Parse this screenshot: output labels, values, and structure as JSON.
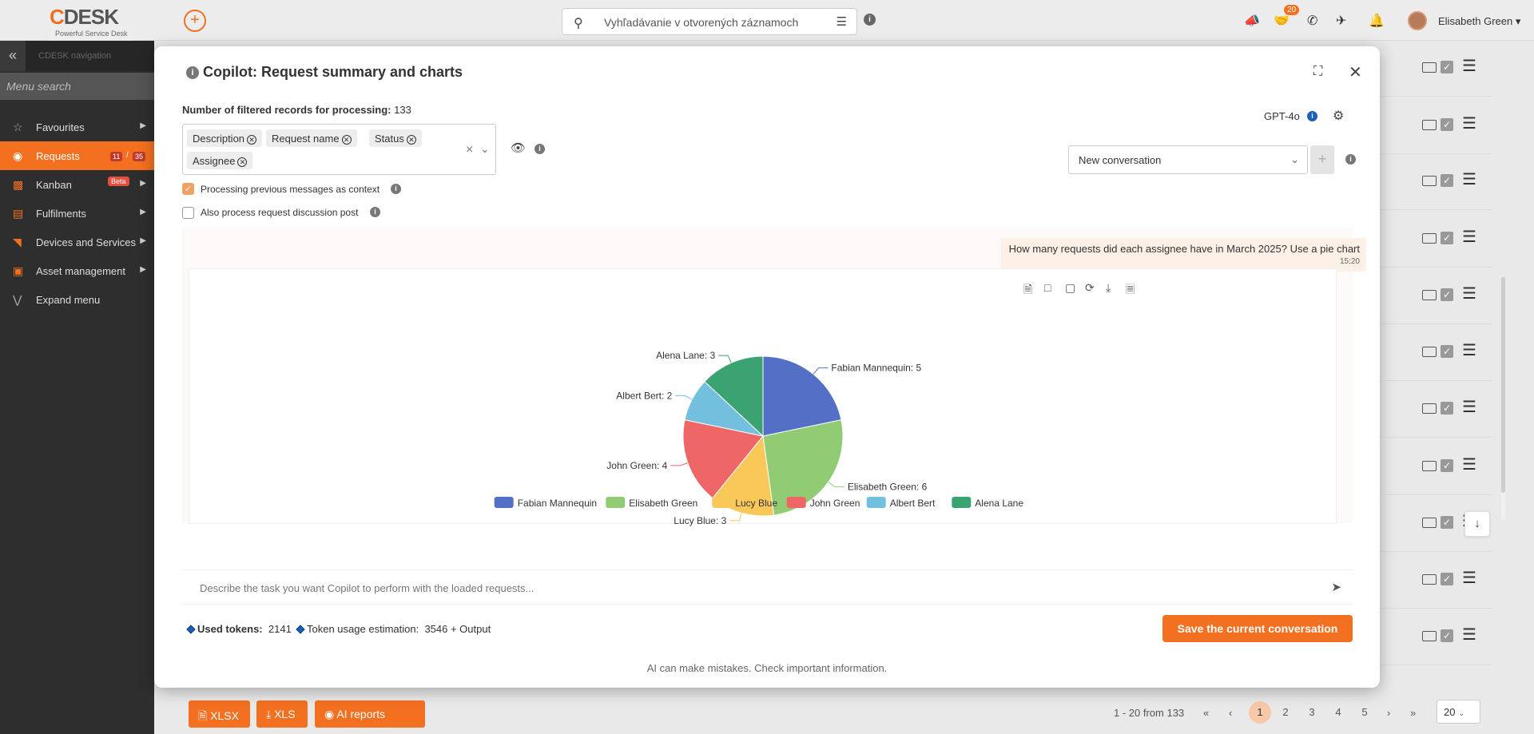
{
  "topbar": {
    "logo_brand_c": "C",
    "logo_brand_desk": "DESK",
    "logo_tagline": "Powerful Service Desk",
    "search_placeholder": "Vyhľadávanie v otvorených záznamoch",
    "notif_badge": "20",
    "user_name": "Elisabeth Green"
  },
  "sidebar": {
    "title": "CDESK navigation",
    "menu_search": "Menu search",
    "items": [
      {
        "label": "Favourites"
      },
      {
        "label": "Requests",
        "count_a": "11",
        "sep": "/",
        "count_b": "35"
      },
      {
        "label": "Kanban",
        "badge": "Beta"
      },
      {
        "label": "Fulfilments"
      },
      {
        "label": "Devices and Services"
      },
      {
        "label": "Asset management"
      },
      {
        "label": "Expand menu"
      }
    ]
  },
  "bottombar": {
    "xlsx": "XLSX",
    "xls": "XLS",
    "ai_reports": "AI reports",
    "range": "1 - 20 from 133",
    "pages": [
      "1",
      "2",
      "3",
      "4",
      "5"
    ],
    "per_page": "20"
  },
  "modal": {
    "title": "Copilot: Request summary and charts",
    "filtered_label": "Number of filtered records for processing:",
    "filtered_value": "133",
    "tags": [
      "Description",
      "Request name",
      "Status",
      "Assignee"
    ],
    "opt_context": "Processing previous messages as context",
    "opt_discussion": "Also process request discussion post",
    "model": "GPT-4o",
    "conversation": "New conversation",
    "user_message": "How many requests did each assignee have in March 2025? Use a pie chart",
    "user_message_time": "15:20",
    "prompt_placeholder": "Describe the task you want Copilot to perform with the loaded requests...",
    "used_tokens_label": "Used tokens:",
    "used_tokens_value": "2141",
    "estimate_label": "Token usage estimation:",
    "estimate_value": "3546 + Output",
    "save_button": "Save the current conversation",
    "disclaimer": "AI can make mistakes. Check important information."
  },
  "chart_data": {
    "type": "pie",
    "categories": [
      "Fabian Mannequin",
      "Elisabeth Green",
      "Lucy Blue",
      "John Green",
      "Albert Bert",
      "Alena Lane"
    ],
    "values": [
      5,
      6,
      3,
      4,
      2,
      3
    ],
    "colors": [
      "#5470c6",
      "#91cc75",
      "#fac858",
      "#ee6666",
      "#73c0de",
      "#3ba272"
    ],
    "legend": "bottom"
  }
}
